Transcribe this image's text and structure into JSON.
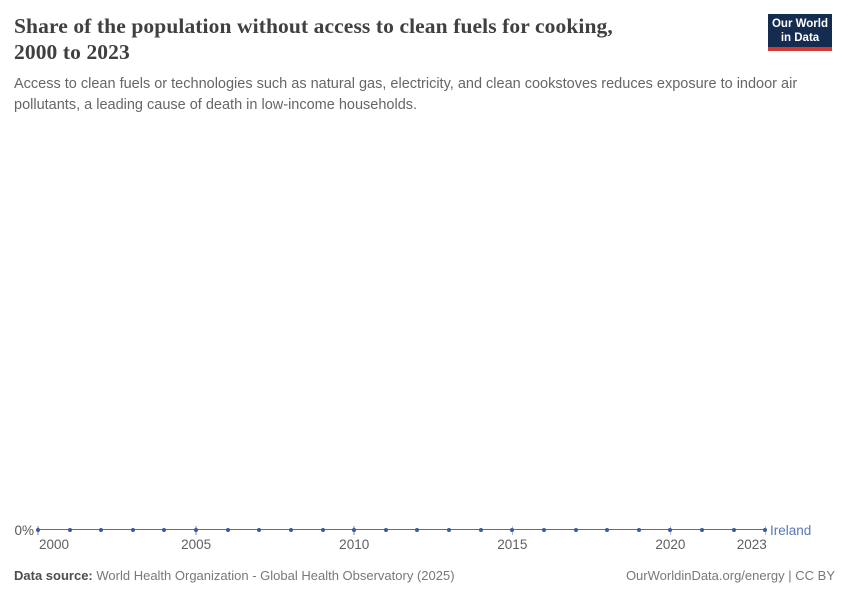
{
  "header": {
    "title_line1": "Share of the population without access to clean fuels for cooking,",
    "title_line2": "2000 to 2023",
    "subtitle": "Access to clean fuels or technologies such as natural gas, electricity, and clean cookstoves reduces exposure to indoor air pollutants, a leading cause of death in low-income households."
  },
  "logo": {
    "line1": "Our World",
    "line2": "in Data"
  },
  "colors": {
    "logo_navy": "#132c4f",
    "logo_red": "#cf3b32",
    "series_blue": "#4f6eb3",
    "dot_blue": "#3b5b9e",
    "entity_label_blue": "#5777b8",
    "tick_gray_blue": "#b6c0d8"
  },
  "chart_data": {
    "type": "line",
    "title": "Share of the population without access to clean fuels for cooking, 2000 to 2023",
    "xlabel": "",
    "ylabel": "",
    "unit": "%",
    "xlim": [
      2000,
      2023
    ],
    "x_ticks": [
      2000,
      2005,
      2010,
      2015,
      2020,
      2023
    ],
    "y_tick_labels": [
      "0%"
    ],
    "grid": false,
    "legend_position": "end-of-line",
    "series": [
      {
        "name": "Ireland",
        "color": "#4f6eb3",
        "x": [
          2000,
          2001,
          2002,
          2003,
          2004,
          2005,
          2006,
          2007,
          2008,
          2009,
          2010,
          2011,
          2012,
          2013,
          2014,
          2015,
          2016,
          2017,
          2018,
          2019,
          2020,
          2021,
          2022,
          2023
        ],
        "values": [
          0,
          0,
          0,
          0,
          0,
          0,
          0,
          0,
          0,
          0,
          0,
          0,
          0,
          0,
          0,
          0,
          0,
          0,
          0,
          0,
          0,
          0,
          0,
          0
        ]
      }
    ]
  },
  "footer": {
    "source_label": "Data source:",
    "source_value": "World Health Organization - Global Health Observatory (2025)",
    "credit": "OurWorldinData.org/energy | CC BY"
  }
}
